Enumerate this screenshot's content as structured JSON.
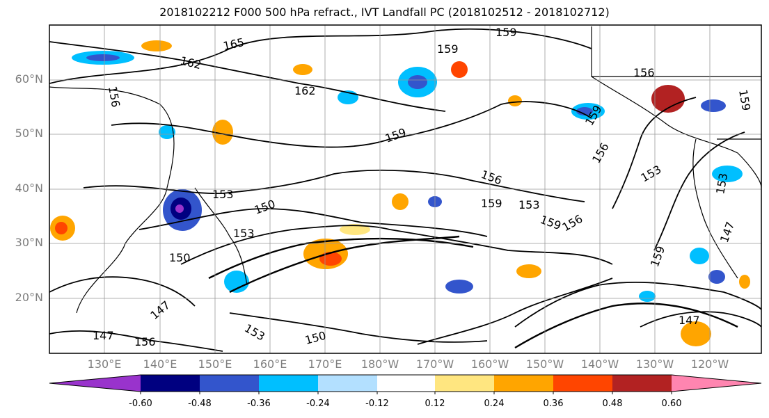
{
  "title": "2018102212 F000 500 hPa refract., IVT Landfall PC (2018102512 - 2018102712)",
  "map": {
    "lat_labels": [
      {
        "text": "60°N",
        "lat": 60
      },
      {
        "text": "50°N",
        "lat": 50
      },
      {
        "text": "40°N",
        "lat": 40
      },
      {
        "text": "30°N",
        "lat": 30
      },
      {
        "text": "20°N",
        "lat": 20
      }
    ],
    "lon_labels": [
      "130°E",
      "140°E",
      "150°E",
      "160°E",
      "170°E",
      "180°W",
      "170°W",
      "160°W",
      "150°W",
      "140°W",
      "130°W",
      "120°W"
    ],
    "contour_labels": [
      "165",
      "162",
      "159",
      "162",
      "159",
      "159",
      "156",
      "156",
      "153",
      "153",
      "150",
      "153",
      "159",
      "153",
      "159",
      "156",
      "159",
      "150",
      "147",
      "147",
      "156",
      "147",
      "159",
      "156",
      "153",
      "159",
      "150",
      "147",
      "156",
      "153"
    ]
  },
  "colorbar": {
    "colors": [
      "#9933cc",
      "#000080",
      "#3355cc",
      "#00bfff",
      "#b3e0ff",
      "#ffffff",
      "#ffe680",
      "#ffa500",
      "#ff4500",
      "#b22222",
      "#ff85b0"
    ],
    "tick_labels": [
      "-0.60",
      "-0.48",
      "-0.36",
      "-0.24",
      "-0.12",
      "0.12",
      "0.24",
      "0.36",
      "0.48",
      "0.60"
    ]
  }
}
